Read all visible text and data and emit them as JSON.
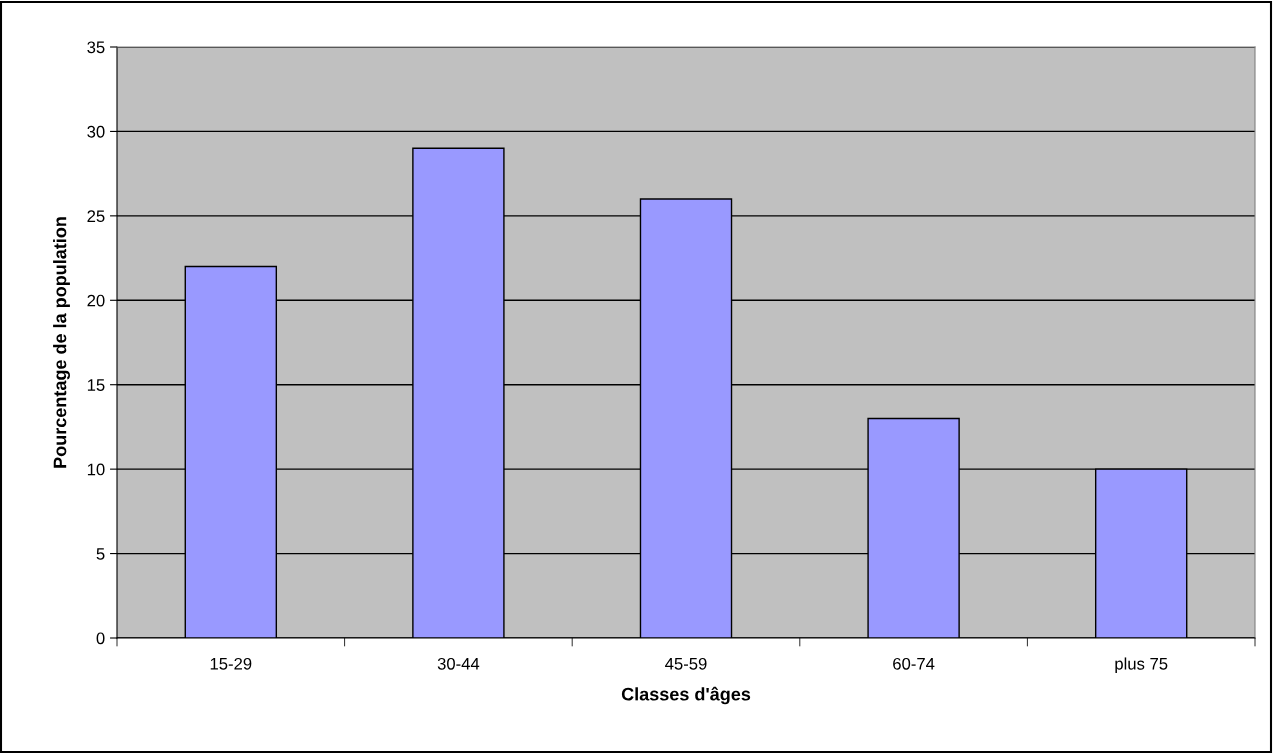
{
  "chart_data": {
    "type": "bar",
    "xlabel": "Classes d'âges",
    "ylabel": "Pourcentage de la population",
    "categories": [
      "15-29",
      "30-44",
      "45-59",
      "60-74",
      "plus 75"
    ],
    "values": [
      22,
      29,
      26,
      13,
      10
    ],
    "color": "#9999ff",
    "ylim": [
      0,
      35
    ],
    "yticks": [
      0,
      5,
      10,
      15,
      20,
      25,
      30,
      35
    ],
    "grid": "y"
  }
}
